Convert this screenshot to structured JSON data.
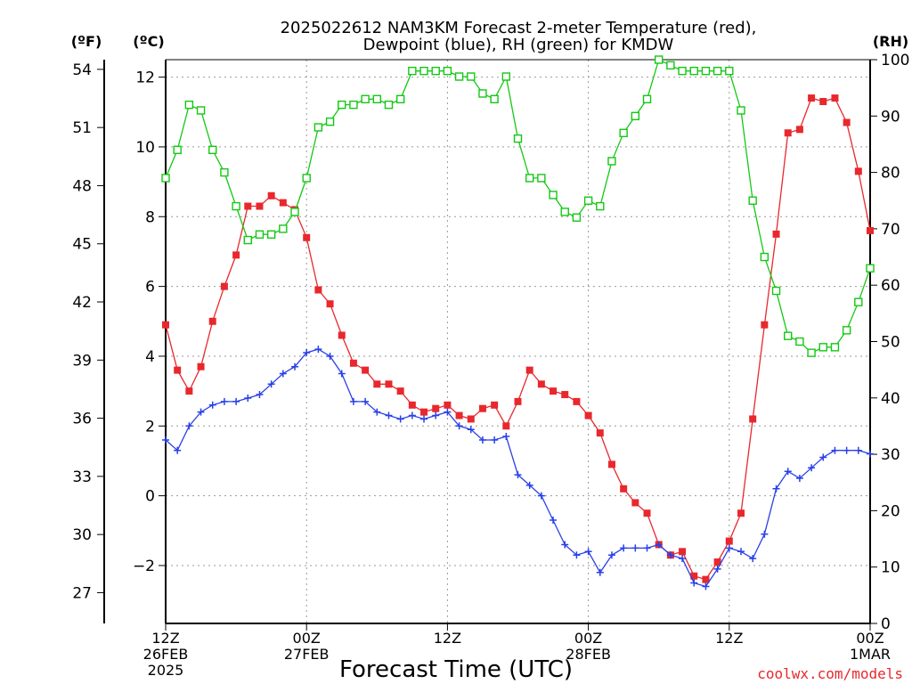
{
  "chart_data": {
    "type": "line",
    "title_line1": "2025022612 NAM3KM Forecast 2-meter Temperature (red),",
    "title_line2": "Dewpoint (blue), RH (green) for KMDW",
    "xlabel": "Forecast Time (UTC)",
    "unit_f": "(ºF)",
    "unit_c": "(ºC)",
    "unit_rh": "(RH)",
    "watermark": "coolwx.com/models",
    "x_range": [
      0,
      60
    ],
    "x_ticks": [
      {
        "x": 0,
        "lines": [
          "12Z",
          "26FEB",
          "2025"
        ]
      },
      {
        "x": 12,
        "lines": [
          "00Z",
          "27FEB"
        ]
      },
      {
        "x": 24,
        "lines": [
          "12Z"
        ]
      },
      {
        "x": 36,
        "lines": [
          "00Z",
          "28FEB"
        ]
      },
      {
        "x": 48,
        "lines": [
          "12Z"
        ]
      },
      {
        "x": 60,
        "lines": [
          "00Z",
          "1MAR"
        ]
      }
    ],
    "y_left_c": {
      "range": [
        -3.66,
        12.5
      ],
      "ticks": [
        -2,
        0,
        2,
        4,
        6,
        8,
        10,
        12
      ]
    },
    "y_left_f": {
      "ticks": [
        27,
        30,
        33,
        36,
        39,
        42,
        45,
        48,
        51,
        54
      ]
    },
    "y_right_rh": {
      "range": [
        0,
        100
      ],
      "ticks": [
        0,
        10,
        20,
        30,
        40,
        50,
        60,
        70,
        80,
        90,
        100
      ]
    },
    "series": [
      {
        "name": "Temperature (red)",
        "axis": "c",
        "color": "#e8282d",
        "marker": "filled-square",
        "values": [
          4.9,
          3.6,
          3.0,
          3.7,
          5.0,
          6.0,
          6.9,
          8.3,
          8.3,
          8.6,
          8.4,
          8.2,
          7.4,
          5.9,
          5.5,
          4.6,
          3.8,
          3.6,
          3.2,
          3.2,
          3.0,
          2.6,
          2.4,
          2.5,
          2.6,
          2.3,
          2.2,
          2.5,
          2.6,
          2.0,
          2.7,
          3.6,
          3.2,
          3.0,
          2.9,
          2.7,
          2.3,
          1.8,
          0.9,
          0.2,
          -0.2,
          -0.5,
          -1.4,
          -1.7,
          -1.6,
          -2.3,
          -2.4,
          -1.9,
          -1.3,
          -0.5,
          2.2,
          4.9,
          7.5,
          10.4,
          10.5,
          11.4,
          11.3,
          11.4,
          10.7,
          9.3,
          7.6
        ]
      },
      {
        "name": "Dewpoint (blue)",
        "axis": "c",
        "color": "#2840e8",
        "marker": "plus",
        "values": [
          1.6,
          1.3,
          2.0,
          2.4,
          2.6,
          2.7,
          2.7,
          2.8,
          2.9,
          3.2,
          3.5,
          3.7,
          4.1,
          4.2,
          4.0,
          3.5,
          2.7,
          2.7,
          2.4,
          2.3,
          2.2,
          2.3,
          2.2,
          2.3,
          2.4,
          2.0,
          1.9,
          1.6,
          1.6,
          1.7,
          0.6,
          0.3,
          0.0,
          -0.7,
          -1.4,
          -1.7,
          -1.6,
          -2.2,
          -1.7,
          -1.5,
          -1.5,
          -1.5,
          -1.4,
          -1.7,
          -1.8,
          -2.5,
          -2.6,
          -2.1,
          -1.5,
          -1.6,
          -1.8,
          -1.1,
          0.2,
          0.7,
          0.5,
          0.8,
          1.1,
          1.3,
          1.3,
          1.3,
          1.2
        ]
      },
      {
        "name": "RH (green)",
        "axis": "rh",
        "color": "#14c814",
        "marker": "open-square",
        "values": [
          79,
          84,
          92,
          91,
          84,
          80,
          74,
          68,
          69,
          69,
          70,
          73,
          79,
          88,
          89,
          92,
          92,
          93,
          93,
          92,
          93,
          98,
          98,
          98,
          98,
          97,
          97,
          94,
          93,
          97,
          86,
          79,
          79,
          76,
          73,
          72,
          75,
          74,
          82,
          87,
          90,
          93,
          100,
          99,
          98,
          98,
          98,
          98,
          98,
          91,
          75,
          65,
          59,
          51,
          50,
          48,
          49,
          49,
          52,
          57,
          63
        ]
      }
    ]
  }
}
